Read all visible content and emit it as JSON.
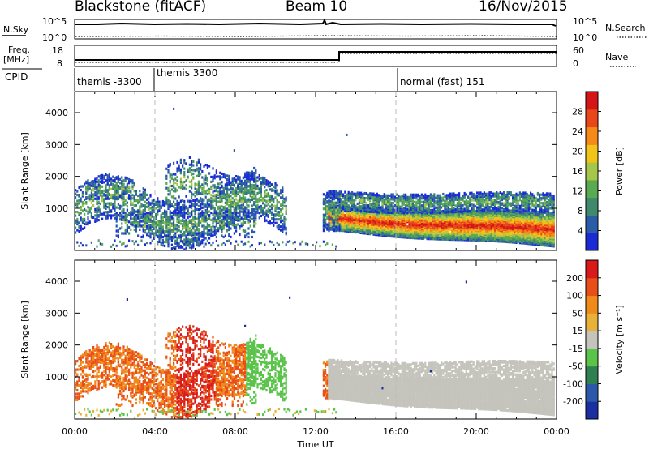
{
  "header": {
    "station": "Blackstone (fitACF)",
    "beam": "Beam 10",
    "date": "16/Nov/2015"
  },
  "panels": {
    "nsky": {
      "label": "N.Sky",
      "right_label": "N.Search",
      "ticks": [
        "10^5",
        "10^0"
      ],
      "right_ticks": [
        "10^5",
        "10^0"
      ]
    },
    "freq": {
      "label_line1": "Freq.",
      "label_line2": "[MHz]",
      "ticks": [
        "18",
        "8"
      ],
      "right_label": "Nave",
      "right_ticks": [
        "60",
        "0"
      ]
    },
    "cpid": {
      "label": "CPID",
      "segments": [
        "themis -3300",
        "themis 3300",
        "normal (fast) 151"
      ]
    }
  },
  "chart_data": [
    {
      "type": "heatmap",
      "title": "",
      "ylabel": "Slant Range [km]",
      "y_ticks": [
        "4000",
        "3000",
        "2000",
        "1000"
      ],
      "colorbar": {
        "label": "Power [dB]",
        "ticks": [
          "28",
          "24",
          "20",
          "16",
          "12",
          "8",
          "4"
        ]
      }
    },
    {
      "type": "heatmap",
      "title": "",
      "ylabel": "Slant Range [km]",
      "y_ticks": [
        "4000",
        "3000",
        "2000",
        "1000"
      ],
      "colorbar": {
        "label": "Velocity [m s⁻¹]",
        "ticks": [
          "200",
          "100",
          "50",
          "15",
          "-15",
          "-50",
          "-100",
          "-200"
        ]
      }
    }
  ],
  "x_axis": {
    "label": "Time UT",
    "ticks": [
      "00:00",
      "04:00",
      "08:00",
      "12:00",
      "16:00",
      "20:00",
      "00:00"
    ]
  },
  "colors": {
    "power": [
      "#1a2bd6",
      "#2a5ca8",
      "#3f8a6c",
      "#5aaa52",
      "#a6c64a",
      "#f2c318",
      "#f58a18",
      "#e84818",
      "#d61616"
    ],
    "velocity": [
      "#1c2fa0",
      "#2b58a8",
      "#2f7f53",
      "#5ac34a",
      "#c4c4bc",
      "#e8b23a",
      "#f08a1a",
      "#e84e18",
      "#d81a1a"
    ]
  }
}
